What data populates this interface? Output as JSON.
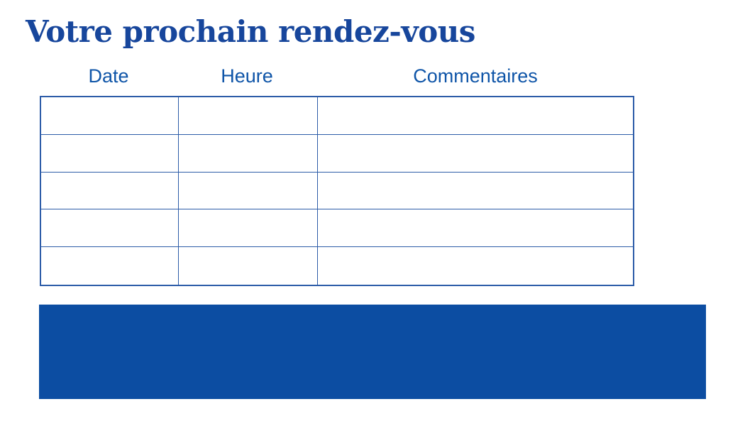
{
  "page": {
    "title": "Votre prochain rendez-vous"
  },
  "colors": {
    "background": "#ffffff",
    "title_text": "#17469c",
    "header_text": "#0f55a8",
    "table_border": "#2d5ca8",
    "banner_fill": "#0c4da2"
  },
  "table": {
    "headers": [
      "Date",
      "Heure",
      "Commentaires"
    ],
    "rows": [
      [
        "",
        "",
        ""
      ],
      [
        "",
        "",
        ""
      ],
      [
        "",
        "",
        ""
      ],
      [
        "",
        "",
        ""
      ],
      [
        "",
        "",
        ""
      ]
    ]
  }
}
